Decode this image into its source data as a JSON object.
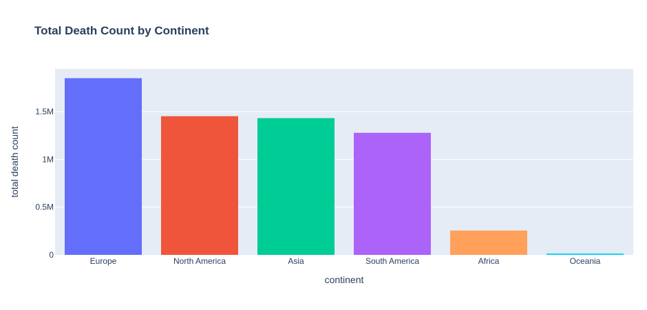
{
  "chart_data": {
    "type": "bar",
    "title": "Total Death Count by Continent",
    "xlabel": "continent",
    "ylabel": "total death count",
    "categories": [
      "Europe",
      "North America",
      "Asia",
      "South America",
      "Africa",
      "Oceania"
    ],
    "values": [
      1850000,
      1452000,
      1432000,
      1278000,
      255000,
      15000
    ],
    "colors": [
      "#636efa",
      "#ef553b",
      "#00cc96",
      "#ab63fa",
      "#ffa15a",
      "#19d3f3"
    ],
    "y_ticks": [
      0,
      500000,
      1000000,
      1500000
    ],
    "y_tick_labels": [
      "0",
      "0.5M",
      "1M",
      "1.5M"
    ],
    "ylim": [
      0,
      1947368
    ],
    "grid": true,
    "plot_background": "#e5ecf6",
    "legend": "none"
  }
}
